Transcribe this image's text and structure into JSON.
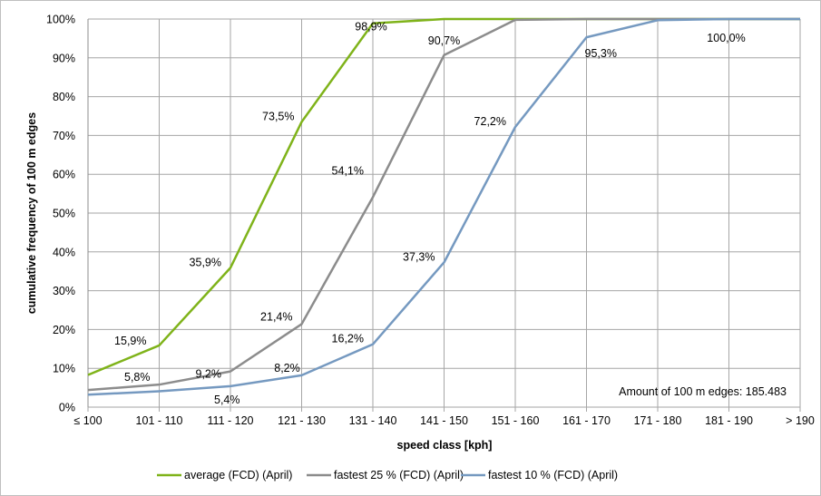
{
  "chart_data": {
    "type": "line",
    "title": "",
    "xlabel": "speed class [kph]",
    "ylabel": "cumulative frequency of 100 m edges",
    "categories": [
      "≤ 100",
      "101 - 110",
      "111 - 120",
      "121 - 130",
      "131 - 140",
      "141 - 150",
      "151 - 160",
      "161 - 170",
      "171 - 180",
      "181 - 190",
      "> 190"
    ],
    "y_ticks": [
      "0%",
      "10%",
      "20%",
      "30%",
      "40%",
      "50%",
      "60%",
      "70%",
      "80%",
      "90%",
      "100%"
    ],
    "ylim": [
      0,
      100
    ],
    "grid": true,
    "legend_position": "bottom",
    "annotation": "Amount of 100 m edges: 185.483",
    "series": [
      {
        "name": "average (FCD) (April)",
        "color": "#7fb31a",
        "values": [
          8.3,
          15.9,
          35.9,
          73.5,
          98.9,
          100,
          100,
          100,
          100,
          100,
          100
        ],
        "labels": [
          null,
          "15,9%",
          "35,9%",
          "73,5%",
          "98,9%",
          null,
          null,
          null,
          null,
          null,
          null
        ]
      },
      {
        "name": "fastest 25 % (FCD) (April)",
        "color": "#8c8c8c",
        "values": [
          4.4,
          5.8,
          9.2,
          21.4,
          54.1,
          90.7,
          99.8,
          100,
          100,
          100,
          100
        ],
        "labels": [
          null,
          "5,8%",
          "9,2%",
          "21,4%",
          "54,1%",
          "90,7%",
          null,
          null,
          null,
          null,
          null
        ]
      },
      {
        "name": "fastest 10 % (FCD) (April)",
        "color": "#7599c0",
        "values": [
          3.2,
          4.1,
          5.4,
          8.2,
          16.2,
          37.3,
          72.2,
          95.3,
          99.7,
          100,
          100
        ],
        "labels": [
          null,
          null,
          "5,4%",
          "8,2%",
          "16,2%",
          "37,3%",
          "72,2%",
          "95,3%",
          null,
          "100,0%",
          null
        ]
      }
    ]
  }
}
